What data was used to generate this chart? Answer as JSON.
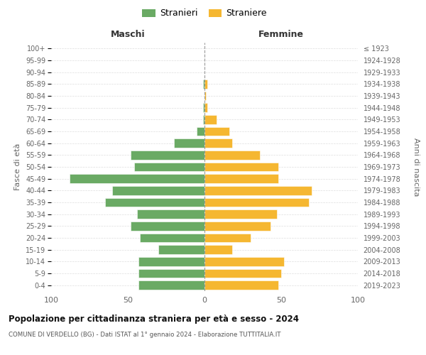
{
  "age_groups": [
    "0-4",
    "5-9",
    "10-14",
    "15-19",
    "20-24",
    "25-29",
    "30-34",
    "35-39",
    "40-44",
    "45-49",
    "50-54",
    "55-59",
    "60-64",
    "65-69",
    "70-74",
    "75-79",
    "80-84",
    "85-89",
    "90-94",
    "95-99",
    "100+"
  ],
  "birth_years": [
    "2019-2023",
    "2014-2018",
    "2009-2013",
    "2004-2008",
    "1999-2003",
    "1994-1998",
    "1989-1993",
    "1984-1988",
    "1979-1983",
    "1974-1978",
    "1969-1973",
    "1964-1968",
    "1959-1963",
    "1954-1958",
    "1949-1953",
    "1944-1948",
    "1939-1943",
    "1934-1938",
    "1929-1933",
    "1924-1928",
    "≤ 1923"
  ],
  "maschi": [
    43,
    43,
    43,
    30,
    42,
    48,
    44,
    65,
    60,
    88,
    46,
    48,
    20,
    5,
    1,
    1,
    0,
    1,
    0,
    0,
    0
  ],
  "femmine": [
    48,
    50,
    52,
    18,
    30,
    43,
    47,
    68,
    70,
    48,
    48,
    36,
    18,
    16,
    8,
    2,
    1,
    2,
    0,
    0,
    0
  ],
  "maschi_color": "#6aaa64",
  "femmine_color": "#f5b731",
  "title": "Popolazione per cittadinanza straniera per età e sesso - 2024",
  "subtitle": "COMUNE DI VERDELLO (BG) - Dati ISTAT al 1° gennaio 2024 - Elaborazione TUTTITALIA.IT",
  "xlabel_left": "Maschi",
  "xlabel_right": "Femmine",
  "ylabel_left": "Fasce di età",
  "ylabel_right": "Anni di nascita",
  "xlim": 100,
  "legend_stranieri": "Stranieri",
  "legend_straniere": "Straniere",
  "background_color": "#ffffff",
  "grid_color": "#dddddd"
}
